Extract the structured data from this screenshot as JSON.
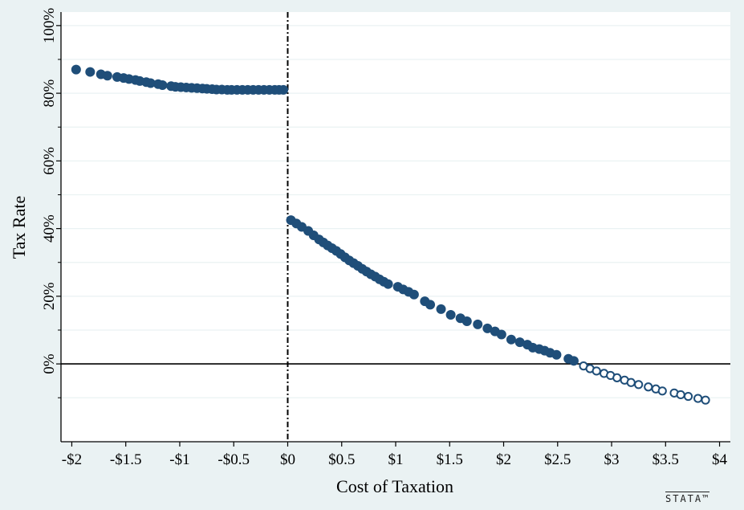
{
  "chart_data": {
    "type": "scatter",
    "title": "",
    "xlabel": "Cost of Taxation",
    "ylabel": "Tax Rate",
    "xlim": [
      -2.1,
      4.1
    ],
    "ylim": [
      -23,
      104
    ],
    "x_ticks": [
      -2,
      -1.5,
      -1,
      -0.5,
      0,
      0.5,
      1,
      1.5,
      2,
      2.5,
      3,
      3.5,
      4
    ],
    "x_tick_labels": [
      "-$2",
      "-$1.5",
      "-$1",
      "-$0.5",
      "$0",
      "$0.5",
      "$1",
      "$1.5",
      "$2",
      "$2.5",
      "$3",
      "$3.5",
      "$4"
    ],
    "y_ticks": [
      0,
      20,
      40,
      60,
      80,
      100
    ],
    "y_tick_labels": [
      "0%",
      "20%",
      "40%",
      "60%",
      "80%",
      "100%"
    ],
    "y_minor_grid": [
      -10,
      10,
      30,
      50,
      70,
      90
    ],
    "grid": true,
    "reference_lines": [
      {
        "axis": "x",
        "value": 0,
        "style": "dash-dot"
      },
      {
        "axis": "y",
        "value": 0,
        "style": "solid"
      }
    ],
    "marker_color": "#1f4e79",
    "series": [
      {
        "marker": "filled",
        "x": [
          -1.96,
          -1.83,
          -1.73,
          -1.67,
          -1.58,
          -1.52,
          -1.47,
          -1.41,
          -1.37,
          -1.31,
          -1.27,
          -1.2,
          -1.16,
          -1.08,
          -1.04,
          -0.99,
          -0.94,
          -0.89,
          -0.84,
          -0.79,
          -0.75,
          -0.7,
          -0.66,
          -0.61,
          -0.56,
          -0.52,
          -0.47,
          -0.42,
          -0.37,
          -0.32,
          -0.27,
          -0.22,
          -0.17,
          -0.12,
          -0.08,
          -0.04
        ],
        "y": [
          87,
          86.3,
          85.6,
          85.2,
          84.8,
          84.5,
          84.2,
          83.9,
          83.6,
          83.3,
          83.0,
          82.7,
          82.4,
          82.1,
          81.9,
          81.8,
          81.7,
          81.6,
          81.5,
          81.4,
          81.3,
          81.2,
          81.1,
          81.1,
          81.0,
          81.0,
          81.0,
          81.0,
          81.0,
          81.0,
          81.0,
          81.0,
          81.0,
          81.0,
          81.0,
          81.0
        ]
      },
      {
        "marker": "filled",
        "x": [
          0.03,
          0.08,
          0.13,
          0.19,
          0.24,
          0.29,
          0.33,
          0.37,
          0.41,
          0.45,
          0.49,
          0.53,
          0.57,
          0.61,
          0.65,
          0.69,
          0.73,
          0.77,
          0.81,
          0.85,
          0.89,
          0.93,
          1.02,
          1.07,
          1.12,
          1.17,
          1.27,
          1.32,
          1.42,
          1.51,
          1.6,
          1.66,
          1.76,
          1.85,
          1.92,
          1.98,
          2.07,
          2.15,
          2.22,
          2.27,
          2.33,
          2.38,
          2.43,
          2.49,
          2.6,
          2.65
        ],
        "y": [
          42.5,
          41.5,
          40.5,
          39.3,
          38,
          36.8,
          35.9,
          35,
          34.2,
          33.4,
          32.5,
          31.5,
          30.6,
          29.8,
          29,
          28.1,
          27.3,
          26.5,
          25.8,
          25,
          24.3,
          23.6,
          22.8,
          22,
          21.3,
          20.5,
          18.5,
          17.5,
          16.2,
          14.5,
          13.5,
          12.6,
          11.7,
          10.5,
          9.6,
          8.7,
          7.2,
          6.4,
          5.7,
          4.8,
          4.4,
          3.9,
          3.3,
          2.7,
          1.5,
          0.9
        ]
      },
      {
        "marker": "hollow",
        "x": [
          2.74,
          2.8,
          2.86,
          2.93,
          2.99,
          3.05,
          3.12,
          3.18,
          3.25,
          3.34,
          3.41,
          3.47,
          3.58,
          3.64,
          3.71,
          3.8,
          3.87
        ],
        "y": [
          -0.6,
          -1.4,
          -2.1,
          -2.8,
          -3.4,
          -4.1,
          -4.8,
          -5.5,
          -6.1,
          -6.8,
          -7.4,
          -8,
          -8.6,
          -9.1,
          -9.6,
          -10.2,
          -10.7
        ]
      }
    ]
  },
  "watermark": "STATA™"
}
